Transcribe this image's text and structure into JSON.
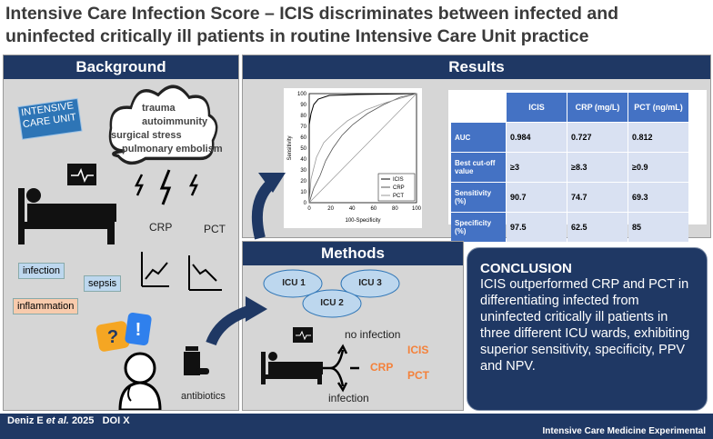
{
  "title_lines": [
    "Intensive Care Infection Score – ICIS discriminates between infected and",
    "uninfected critically ill patients in routine Intensive Care Unit practice"
  ],
  "background": {
    "heading": "Background",
    "unit_label": "INTENSIVE CARE UNIT",
    "causes": [
      "trauma",
      "autoimmunity",
      "surgical stress",
      "pulmonary embolism"
    ],
    "markers": [
      "CRP",
      "PCT"
    ],
    "conditions": [
      "infection",
      "sepsis",
      "inflammation"
    ],
    "treatment": "antibiotics"
  },
  "results": {
    "heading": "Results",
    "roc": {
      "y_label": "Sensitivity",
      "x_label": "100-Specificity",
      "yticks": [
        "0",
        "10",
        "20",
        "30",
        "40",
        "50",
        "60",
        "70",
        "80",
        "90",
        "100"
      ],
      "xticks": [
        "0",
        "20",
        "40",
        "60",
        "80",
        "100"
      ],
      "legend": [
        "ICIS",
        "CRP",
        "PCT"
      ]
    },
    "table": {
      "header": [
        "ICIS",
        "CRP (mg/L)",
        "PCT (ng/mL)"
      ],
      "rows": [
        {
          "label": "AUC",
          "cells": [
            0.984,
            0.727,
            0.812
          ]
        },
        {
          "label": "Best cut-off value",
          "cells": [
            "≥3",
            "≥8.3",
            "≥0.9"
          ]
        },
        {
          "label": "Sensitivity (%)",
          "cells": [
            90.7,
            74.7,
            69.3
          ]
        },
        {
          "label": "Specificity (%)",
          "cells": [
            97.5,
            62.5,
            85
          ]
        }
      ]
    }
  },
  "methods": {
    "heading": "Methods",
    "sites": [
      "ICU 1",
      "ICU 2",
      "ICU 3"
    ],
    "outcomes": [
      "no infection",
      "infection"
    ],
    "scores": [
      "ICIS",
      "CRP",
      "PCT"
    ]
  },
  "conclusion": {
    "heading": "CONCLUSION",
    "text": "ICIS outperformed CRP and PCT in differentiating infected from uninfected critically ill patients in three different ICU wards, exhibiting superior sensitivity, specificity, PPV and NPV."
  },
  "footer": {
    "author": "Deniz E",
    "etal": "et al.",
    "year": "2025",
    "doi": "DOI X",
    "journal": "Intensive Care Medicine Experimental"
  }
}
